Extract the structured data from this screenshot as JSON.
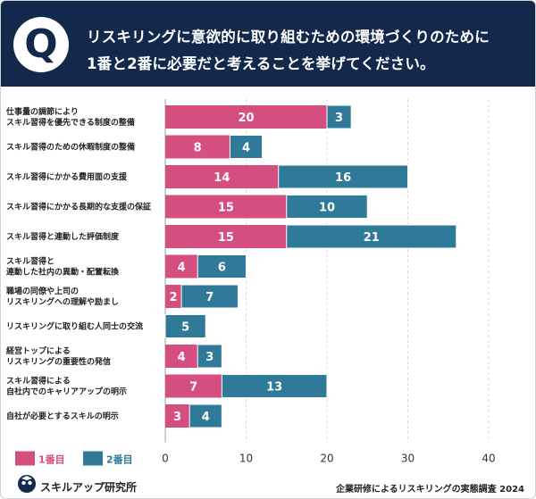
{
  "header": {
    "badge_letter": "Q",
    "question_line1": "リスキリングに意欲的に取り組むための環境づくりのために",
    "question_line2": "1番と2番に必要だと考えることを挙げてください。"
  },
  "chart_data": {
    "type": "bar",
    "orientation": "horizontal",
    "stacked": true,
    "categories": [
      [
        "仕事量の調節により",
        "スキル習得を優先できる制度の整備"
      ],
      [
        "スキル習得のための休暇制度の整備"
      ],
      [
        "スキル習得にかかる費用面の支援"
      ],
      [
        "スキル習得にかかる長期的な支援の保証"
      ],
      [
        "スキル習得と連動した評価制度"
      ],
      [
        "スキル習得と",
        "連動した社内の異動・配置転換"
      ],
      [
        "職場の同僚や上司の",
        "リスキリングへの理解や励まし"
      ],
      [
        "リスキリングに取り組む人同士の交流"
      ],
      [
        "経営トップによる",
        "リスキリングの重要性の発信"
      ],
      [
        "スキル習得による",
        "自社内でのキャリアアップの明示"
      ],
      [
        "自社が必要とするスキルの明示"
      ]
    ],
    "series": [
      {
        "name": "1番目",
        "color": "#d44f7f",
        "values": [
          20,
          8,
          14,
          15,
          15,
          4,
          2,
          0,
          4,
          7,
          3
        ]
      },
      {
        "name": "2番目",
        "color": "#2f7a98",
        "values": [
          3,
          4,
          16,
          10,
          21,
          6,
          7,
          5,
          3,
          13,
          4
        ]
      }
    ],
    "xlim": [
      0,
      40
    ],
    "xticks": [
      0,
      10,
      20,
      30,
      40
    ],
    "grid": true,
    "legend_position": "bottom-left"
  },
  "footer": {
    "brand": "スキルアップ研究所",
    "source": "企業研修によるリスキリングの実態調査 2024"
  }
}
